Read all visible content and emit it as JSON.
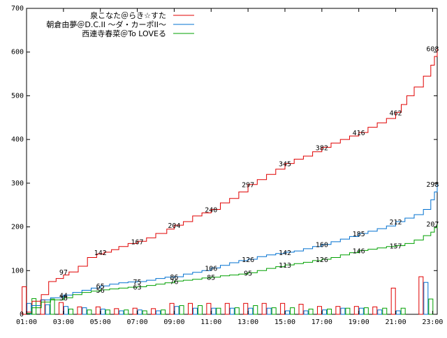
{
  "chart_data": {
    "type": "line",
    "title": "",
    "xlabel": "",
    "ylabel": "",
    "x_range_hours": [
      1,
      23.25
    ],
    "ylim": [
      0,
      700
    ],
    "x_ticks": [
      "01:00",
      "03:00",
      "05:00",
      "07:00",
      "09:00",
      "11:00",
      "13:00",
      "15:00",
      "17:00",
      "19:00",
      "21:00",
      "23:00"
    ],
    "y_ticks": [
      "0",
      "100",
      "200",
      "300",
      "400",
      "500",
      "600",
      "700"
    ],
    "grid": false,
    "legend_position": "top-center",
    "series": [
      {
        "name": "泉こなた＠らき☆すた",
        "color": "#e00000",
        "points": [
          [
            1.0,
            5
          ],
          [
            1.3,
            30
          ],
          [
            1.8,
            45
          ],
          [
            2.2,
            75
          ],
          [
            2.6,
            82
          ],
          [
            3.0,
            90
          ],
          [
            3.3,
            97
          ],
          [
            3.8,
            110
          ],
          [
            4.3,
            130
          ],
          [
            4.8,
            138
          ],
          [
            5.2,
            142
          ],
          [
            5.6,
            148
          ],
          [
            6.0,
            155
          ],
          [
            6.5,
            162
          ],
          [
            7.0,
            167
          ],
          [
            7.5,
            175
          ],
          [
            8.0,
            185
          ],
          [
            8.6,
            195
          ],
          [
            9.0,
            204
          ],
          [
            9.5,
            212
          ],
          [
            10.0,
            225
          ],
          [
            10.5,
            232
          ],
          [
            11.0,
            240
          ],
          [
            11.5,
            255
          ],
          [
            12.0,
            265
          ],
          [
            12.5,
            280
          ],
          [
            13.0,
            297
          ],
          [
            13.5,
            308
          ],
          [
            14.0,
            320
          ],
          [
            14.5,
            332
          ],
          [
            15.0,
            345
          ],
          [
            15.5,
            355
          ],
          [
            16.0,
            362
          ],
          [
            16.5,
            372
          ],
          [
            17.0,
            382
          ],
          [
            17.5,
            392
          ],
          [
            18.0,
            400
          ],
          [
            18.5,
            408
          ],
          [
            19.0,
            416
          ],
          [
            19.5,
            428
          ],
          [
            20.0,
            438
          ],
          [
            20.5,
            448
          ],
          [
            21.0,
            462
          ],
          [
            21.3,
            480
          ],
          [
            21.6,
            500
          ],
          [
            22.0,
            520
          ],
          [
            22.5,
            545
          ],
          [
            22.9,
            570
          ],
          [
            23.1,
            590
          ],
          [
            23.25,
            608
          ]
        ],
        "labels": [
          [
            3.0,
            97
          ],
          [
            5.0,
            142
          ],
          [
            7.0,
            167
          ],
          [
            9.0,
            204
          ],
          [
            11.0,
            240
          ],
          [
            13.0,
            297
          ],
          [
            15.0,
            345
          ],
          [
            17.0,
            382
          ],
          [
            19.0,
            416
          ],
          [
            21.0,
            462
          ],
          [
            23.0,
            608
          ]
        ]
      },
      {
        "name": "朝倉由夢＠D.C.II ～ダ・カーポII～",
        "color": "#0070d0",
        "points": [
          [
            1.0,
            2
          ],
          [
            1.3,
            20
          ],
          [
            1.8,
            33
          ],
          [
            2.3,
            38
          ],
          [
            3.0,
            44
          ],
          [
            3.5,
            50
          ],
          [
            4.0,
            55
          ],
          [
            4.5,
            60
          ],
          [
            5.0,
            65
          ],
          [
            5.5,
            69
          ],
          [
            6.0,
            72
          ],
          [
            6.5,
            74
          ],
          [
            7.0,
            75
          ],
          [
            7.5,
            78
          ],
          [
            8.0,
            82
          ],
          [
            8.5,
            85
          ],
          [
            9.0,
            86
          ],
          [
            9.5,
            92
          ],
          [
            10.0,
            96
          ],
          [
            10.5,
            100
          ],
          [
            11.0,
            106
          ],
          [
            11.5,
            112
          ],
          [
            12.0,
            118
          ],
          [
            12.5,
            123
          ],
          [
            13.0,
            126
          ],
          [
            13.5,
            132
          ],
          [
            14.0,
            136
          ],
          [
            14.5,
            139
          ],
          [
            15.0,
            142
          ],
          [
            15.5,
            145
          ],
          [
            16.0,
            150
          ],
          [
            16.5,
            155
          ],
          [
            17.0,
            160
          ],
          [
            17.5,
            166
          ],
          [
            18.0,
            172
          ],
          [
            18.5,
            178
          ],
          [
            19.0,
            185
          ],
          [
            19.5,
            190
          ],
          [
            20.0,
            196
          ],
          [
            20.5,
            202
          ],
          [
            21.0,
            212
          ],
          [
            21.5,
            220
          ],
          [
            22.0,
            228
          ],
          [
            22.5,
            240
          ],
          [
            22.9,
            262
          ],
          [
            23.1,
            280
          ],
          [
            23.25,
            298
          ]
        ],
        "labels": [
          [
            3.0,
            44
          ],
          [
            5.0,
            65
          ],
          [
            7.0,
            75
          ],
          [
            9.0,
            86
          ],
          [
            11.0,
            106
          ],
          [
            13.0,
            126
          ],
          [
            15.0,
            142
          ],
          [
            17.0,
            160
          ],
          [
            19.0,
            185
          ],
          [
            21.0,
            212
          ],
          [
            23.0,
            298
          ]
        ]
      },
      {
        "name": "西連寺春菜＠To LOVEる",
        "color": "#00a000",
        "points": [
          [
            1.0,
            2
          ],
          [
            1.3,
            15
          ],
          [
            1.8,
            28
          ],
          [
            2.3,
            33
          ],
          [
            3.0,
            38
          ],
          [
            3.5,
            45
          ],
          [
            4.0,
            50
          ],
          [
            4.5,
            53
          ],
          [
            5.0,
            56
          ],
          [
            5.5,
            58
          ],
          [
            6.0,
            60
          ],
          [
            6.5,
            62
          ],
          [
            7.0,
            63
          ],
          [
            7.5,
            66
          ],
          [
            8.0,
            69
          ],
          [
            8.5,
            72
          ],
          [
            9.0,
            76
          ],
          [
            9.5,
            78
          ],
          [
            10.0,
            80
          ],
          [
            10.5,
            83
          ],
          [
            11.0,
            85
          ],
          [
            11.5,
            88
          ],
          [
            12.0,
            90
          ],
          [
            12.5,
            92
          ],
          [
            13.0,
            95
          ],
          [
            13.5,
            100
          ],
          [
            14.0,
            105
          ],
          [
            14.5,
            109
          ],
          [
            15.0,
            113
          ],
          [
            15.5,
            116
          ],
          [
            16.0,
            119
          ],
          [
            16.5,
            123
          ],
          [
            17.0,
            126
          ],
          [
            17.5,
            130
          ],
          [
            18.0,
            136
          ],
          [
            18.5,
            141
          ],
          [
            19.0,
            146
          ],
          [
            19.5,
            149
          ],
          [
            20.0,
            152
          ],
          [
            20.5,
            155
          ],
          [
            21.0,
            157
          ],
          [
            21.5,
            162
          ],
          [
            22.0,
            170
          ],
          [
            22.5,
            180
          ],
          [
            22.9,
            188
          ],
          [
            23.1,
            198
          ],
          [
            23.25,
            207
          ]
        ],
        "labels": [
          [
            3.0,
            38
          ],
          [
            5.0,
            56
          ],
          [
            7.0,
            63
          ],
          [
            9.0,
            76
          ],
          [
            11.0,
            85
          ],
          [
            13.0,
            95
          ],
          [
            15.0,
            113
          ],
          [
            17.0,
            126
          ],
          [
            19.0,
            146
          ],
          [
            21.0,
            157
          ],
          [
            23.0,
            207
          ]
        ]
      }
    ],
    "bars": {
      "type": "bar",
      "note_series_order": [
        0,
        1,
        2
      ],
      "values": [
        [
          1.1,
          63,
          25,
          36
        ],
        [
          2.1,
          33,
          22,
          35
        ],
        [
          3.1,
          27,
          18,
          12
        ],
        [
          4.1,
          17,
          15,
          10
        ],
        [
          5.1,
          17,
          12,
          10
        ],
        [
          6.1,
          13,
          8,
          10
        ],
        [
          7.1,
          14,
          10,
          8
        ],
        [
          8.1,
          13,
          8,
          10
        ],
        [
          9.1,
          25,
          18,
          20
        ],
        [
          10.1,
          25,
          14,
          20
        ],
        [
          11.1,
          25,
          14,
          14
        ],
        [
          12.1,
          25,
          14,
          15
        ],
        [
          13.1,
          25,
          14,
          20
        ],
        [
          14.1,
          25,
          14,
          15
        ],
        [
          15.1,
          25,
          8,
          15
        ],
        [
          16.1,
          23,
          8,
          12
        ],
        [
          17.1,
          18,
          10,
          12
        ],
        [
          18.1,
          18,
          14,
          14
        ],
        [
          19.1,
          18,
          14,
          15
        ],
        [
          20.1,
          17,
          10,
          14
        ],
        [
          21.1,
          60,
          8,
          14
        ],
        [
          22.6,
          86,
          73,
          35
        ]
      ]
    },
    "labels_precision": "integer"
  }
}
